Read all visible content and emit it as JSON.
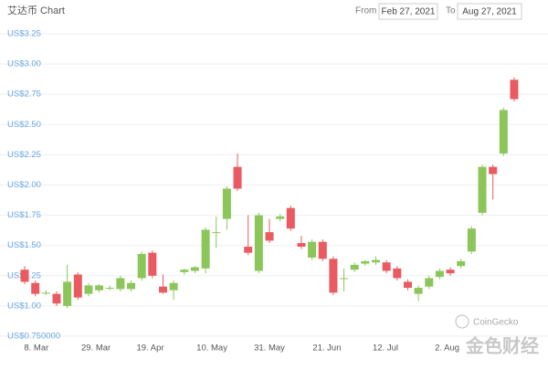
{
  "chart_data": {
    "type": "candlestick",
    "title": "艾达币 Chart",
    "range_from_label": "From",
    "range_from": "Feb 27, 2021",
    "range_to_label": "To",
    "range_to": "Aug 27, 2021",
    "watermark": "CoinGecko",
    "corner_watermark": "金色财经",
    "categories": [
      null,
      null,
      null,
      null,
      null,
      null,
      null,
      null,
      null,
      null,
      null,
      null,
      null,
      null,
      null,
      null,
      null,
      null,
      null,
      null,
      null,
      null,
      null,
      null,
      null,
      null,
      null,
      null,
      null,
      null,
      null,
      null,
      null,
      null,
      null,
      null,
      null,
      null,
      null,
      null,
      null,
      null,
      null,
      null,
      null,
      null,
      null
    ],
    "open": [
      1.3,
      1.19,
      1.11,
      1.1,
      1.0,
      1.26,
      1.1,
      1.13,
      1.15,
      1.14,
      1.14,
      1.23,
      1.44,
      1.16,
      1.13,
      1.28,
      1.29,
      1.31,
      1.61,
      1.72,
      2.15,
      1.49,
      1.29,
      1.61,
      1.72,
      1.81,
      1.52,
      1.4,
      1.53,
      1.39,
      1.23,
      1.3,
      1.35,
      1.36,
      1.36,
      1.31,
      1.2,
      1.1,
      1.16,
      1.24,
      1.3,
      1.33,
      1.45,
      1.77,
      2.15,
      2.26,
      2.87
    ],
    "high": [
      1.33,
      1.21,
      1.13,
      1.12,
      1.34,
      1.28,
      1.19,
      1.18,
      1.17,
      1.25,
      1.21,
      1.45,
      1.46,
      1.26,
      1.21,
      1.31,
      1.33,
      1.65,
      1.74,
      1.99,
      2.26,
      1.75,
      1.77,
      1.72,
      1.76,
      1.83,
      1.58,
      1.55,
      1.55,
      1.41,
      1.31,
      1.36,
      1.38,
      1.41,
      1.38,
      1.33,
      1.22,
      1.17,
      1.25,
      1.31,
      1.32,
      1.39,
      1.66,
      2.17,
      2.17,
      2.64,
      2.89
    ],
    "low": [
      1.18,
      1.08,
      1.09,
      1.0,
      0.98,
      1.05,
      1.08,
      1.11,
      1.13,
      1.12,
      1.12,
      1.21,
      1.23,
      1.1,
      1.05,
      1.26,
      1.27,
      1.27,
      1.48,
      1.63,
      1.95,
      1.42,
      1.27,
      1.52,
      1.7,
      1.62,
      1.47,
      1.38,
      1.37,
      1.09,
      1.12,
      1.28,
      1.33,
      1.34,
      1.27,
      1.21,
      1.13,
      1.04,
      1.14,
      1.22,
      1.25,
      1.31,
      1.43,
      1.75,
      1.88,
      2.24,
      2.69
    ],
    "close": [
      1.2,
      1.1,
      1.11,
      1.02,
      1.2,
      1.07,
      1.17,
      1.17,
      1.15,
      1.23,
      1.19,
      1.43,
      1.25,
      1.11,
      1.19,
      1.3,
      1.32,
      1.63,
      1.61,
      1.97,
      1.97,
      1.44,
      1.75,
      1.54,
      1.74,
      1.64,
      1.49,
      1.53,
      1.39,
      1.11,
      1.23,
      1.34,
      1.37,
      1.38,
      1.29,
      1.23,
      1.15,
      1.15,
      1.23,
      1.29,
      1.27,
      1.37,
      1.64,
      2.15,
      2.09,
      2.62,
      2.71
    ],
    "up_color": "#8cc65a",
    "down_color": "#ea5b61",
    "ylim": [
      0.75,
      3.25
    ],
    "yticks": [
      {
        "value": 0.75,
        "label": "US$0.750000"
      },
      {
        "value": 1,
        "label": "US$1.00"
      },
      {
        "value": 1.25,
        "label": "US$1.25"
      },
      {
        "value": 1.5,
        "label": "US$1.50"
      },
      {
        "value": 1.75,
        "label": "US$1.75"
      },
      {
        "value": 2,
        "label": "US$2.00"
      },
      {
        "value": 2.25,
        "label": "US$2.25"
      },
      {
        "value": 2.5,
        "label": "US$2.50"
      },
      {
        "value": 2.75,
        "label": "US$2.75"
      },
      {
        "value": 3,
        "label": "US$3.00"
      },
      {
        "value": 3.25,
        "label": "US$3.25"
      }
    ],
    "xticks": [
      {
        "value": 1.1,
        "label": "8. Mar"
      },
      {
        "value": 6.7,
        "label": "29. Mar"
      },
      {
        "value": 11.8,
        "label": "19. Apr"
      },
      {
        "value": 17.6,
        "label": "10. May"
      },
      {
        "value": 23.0,
        "label": "31. May"
      },
      {
        "value": 28.4,
        "label": "21. Jun"
      },
      {
        "value": 33.9,
        "label": "12. Jul"
      },
      {
        "value": 39.7,
        "label": "2. Aug"
      }
    ],
    "grid": true
  }
}
